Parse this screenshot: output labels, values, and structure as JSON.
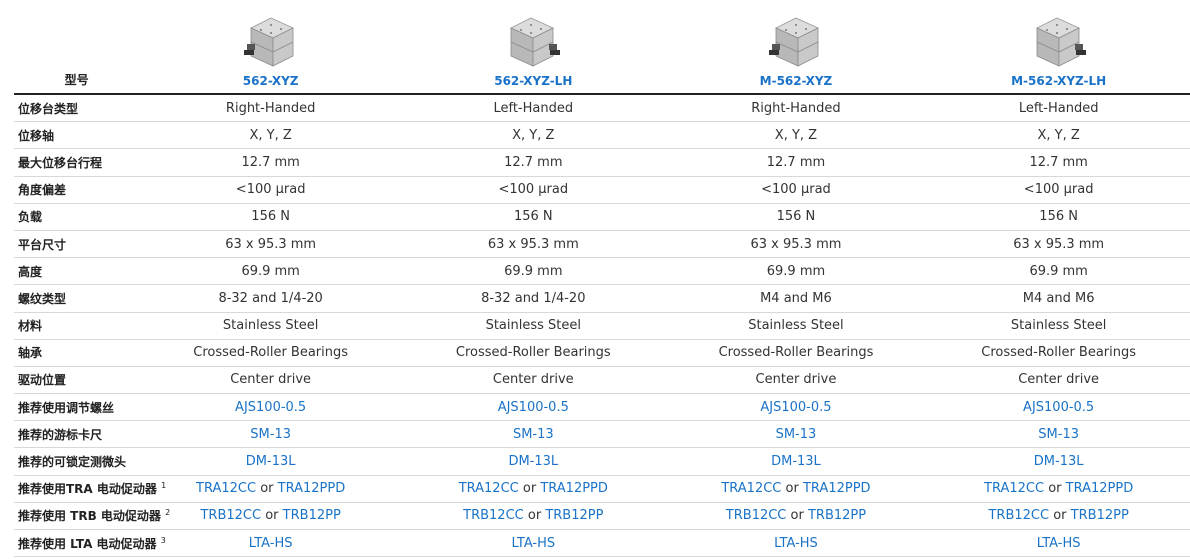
{
  "header": {
    "model_label": "型号",
    "models": [
      "562-XYZ",
      "562-XYZ-LH",
      "M-562-XYZ",
      "M-562-XYZ-LH"
    ]
  },
  "rows": [
    {
      "label": "位移台类型",
      "values": [
        "Right-Handed",
        "Left-Handed",
        "Right-Handed",
        "Left-Handed"
      ]
    },
    {
      "label": "位移轴",
      "values": [
        "X, Y, Z",
        "X, Y, Z",
        "X, Y, Z",
        "X, Y, Z"
      ]
    },
    {
      "label": "最大位移台行程",
      "values": [
        "12.7 mm",
        "12.7 mm",
        "12.7 mm",
        "12.7 mm"
      ]
    },
    {
      "label": "角度偏差",
      "values": [
        "<100 µrad",
        "<100 µrad",
        "<100 µrad",
        "<100 µrad"
      ]
    },
    {
      "label": "负载",
      "values": [
        "156 N",
        "156 N",
        "156 N",
        "156 N"
      ]
    },
    {
      "label": "平台尺寸",
      "values": [
        "63 x 95.3 mm",
        "63 x 95.3 mm",
        "63 x 95.3 mm",
        "63 x 95.3 mm"
      ]
    },
    {
      "label": "高度",
      "values": [
        "69.9 mm",
        "69.9 mm",
        "69.9 mm",
        "69.9 mm"
      ]
    },
    {
      "label": "螺纹类型",
      "values": [
        "8-32 and 1/4-20",
        "8-32 and 1/4-20",
        "M4 and M6",
        "M4 and M6"
      ]
    },
    {
      "label": "材料",
      "values": [
        "Stainless Steel",
        "Stainless Steel",
        "Stainless Steel",
        "Stainless Steel"
      ]
    },
    {
      "label": "轴承",
      "values": [
        "Crossed-Roller Bearings",
        "Crossed-Roller Bearings",
        "Crossed-Roller Bearings",
        "Crossed-Roller Bearings"
      ]
    },
    {
      "label": "驱动位置",
      "values": [
        "Center drive",
        "Center drive",
        "Center drive",
        "Center drive"
      ]
    }
  ],
  "link_rows": [
    {
      "label": "推荐使用调节螺丝",
      "sup": "",
      "first": "AJS100-0.5",
      "second": ""
    },
    {
      "label": "推荐的游标卡尺",
      "sup": "",
      "first": "SM-13",
      "second": ""
    },
    {
      "label": "推荐的可锁定测微头",
      "sup": "",
      "first": "DM-13L",
      "second": ""
    },
    {
      "label": "推荐使用TRA 电动促动器",
      "sup": "1",
      "first": "TRA12CC",
      "second": "TRA12PPD"
    },
    {
      "label": "推荐使用 TRB 电动促动器",
      "sup": "2",
      "first": "TRB12CC",
      "second": "TRB12PP"
    },
    {
      "label": "推荐使用 LTA 电动促动器",
      "sup": "3",
      "first": "LTA-HS",
      "second": ""
    }
  ],
  "or_text": "or",
  "colors": {
    "link": "#1a73c8",
    "text": "#333333",
    "rule": "#222222",
    "divider": "#d8d8d8"
  }
}
